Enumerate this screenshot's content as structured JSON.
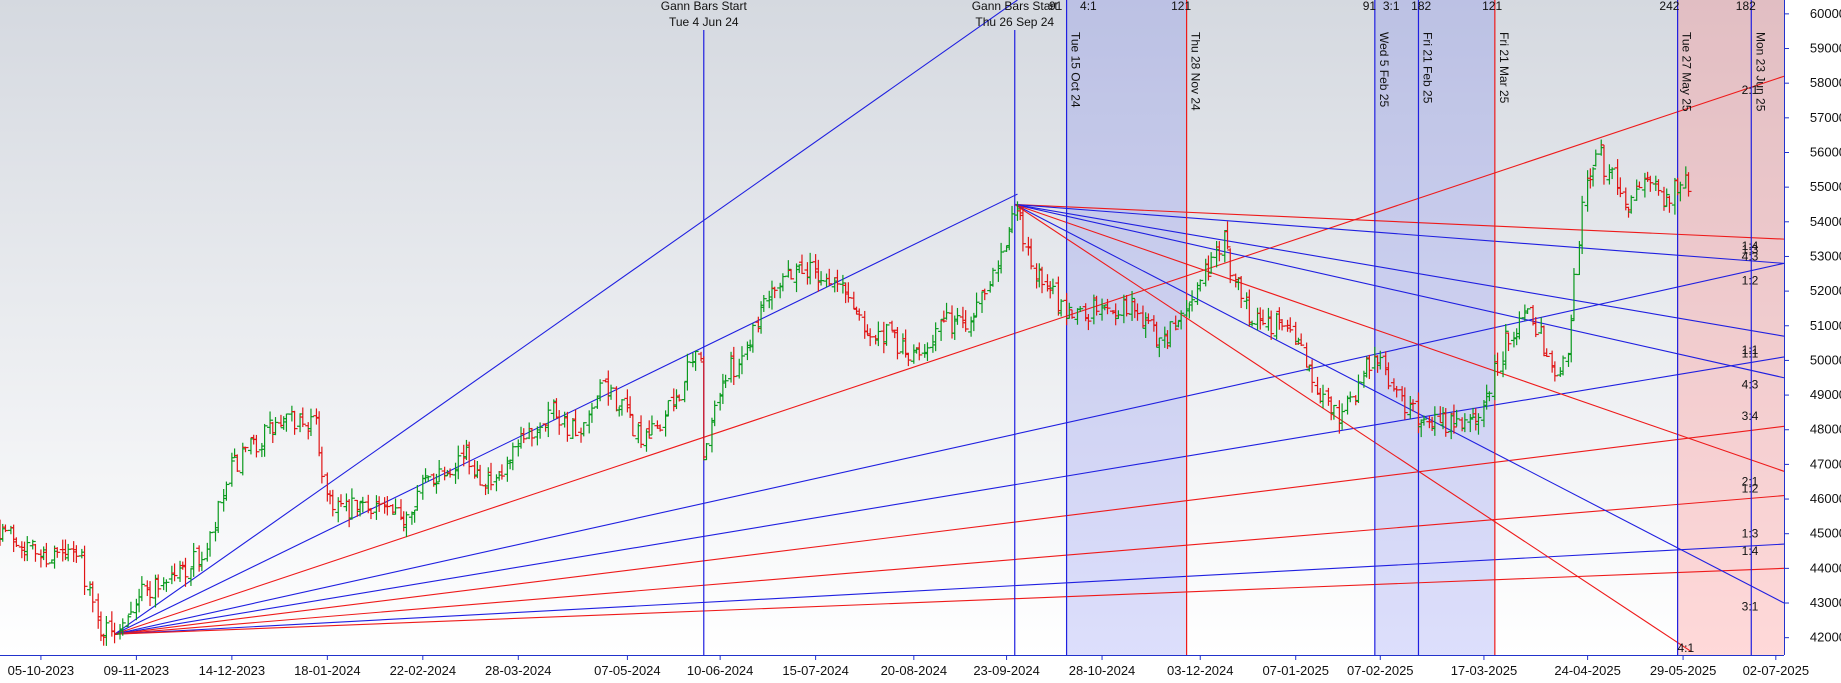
{
  "chart_data": {
    "type": "candlestick",
    "title": "",
    "ylim": [
      41500,
      60400
    ],
    "y_ticks": [
      "42000.00",
      "43000.00",
      "44000.00",
      "45000.00",
      "46000.00",
      "47000.00",
      "48000.00",
      "49000.00",
      "50000.00",
      "51000.00",
      "52000.00",
      "53000.00",
      "54000.00",
      "55000.00",
      "56000.00",
      "57000.00",
      "58000.00",
      "59000.00",
      "60000.00"
    ],
    "x_ticks": [
      "05-10-2023",
      "09-11-2023",
      "14-12-2023",
      "18-01-2024",
      "22-02-2024",
      "28-03-2024",
      "07-05-2024",
      "10-06-2024",
      "15-07-2024",
      "20-08-2024",
      "23-09-2024",
      "28-10-2024",
      "03-12-2024",
      "07-01-2025",
      "07-02-2025",
      "17-03-2025",
      "24-04-2025",
      "29-05-2025",
      "02-07-2025"
    ],
    "date_range": [
      "2023-09-20",
      "2025-07-05"
    ],
    "price_series": [
      {
        "date": "2023-09-20",
        "close": 45200
      },
      {
        "date": "2023-10-05",
        "close": 44400
      },
      {
        "date": "2023-10-20",
        "close": 44300
      },
      {
        "date": "2023-10-26",
        "close": 42400
      },
      {
        "date": "2023-10-31",
        "close": 42100
      },
      {
        "date": "2023-11-09",
        "close": 43200
      },
      {
        "date": "2023-11-25",
        "close": 43900
      },
      {
        "date": "2023-12-05",
        "close": 44400
      },
      {
        "date": "2023-12-14",
        "close": 46800
      },
      {
        "date": "2023-12-28",
        "close": 48000
      },
      {
        "date": "2024-01-08",
        "close": 48300
      },
      {
        "date": "2024-01-14",
        "close": 48100
      },
      {
        "date": "2024-01-18",
        "close": 46200
      },
      {
        "date": "2024-01-25",
        "close": 45600
      },
      {
        "date": "2024-02-05",
        "close": 45900
      },
      {
        "date": "2024-02-14",
        "close": 45300
      },
      {
        "date": "2024-02-22",
        "close": 46400
      },
      {
        "date": "2024-03-08",
        "close": 47300
      },
      {
        "date": "2024-03-20",
        "close": 46300
      },
      {
        "date": "2024-03-28",
        "close": 47400
      },
      {
        "date": "2024-04-10",
        "close": 48700
      },
      {
        "date": "2024-04-20",
        "close": 47700
      },
      {
        "date": "2024-04-29",
        "close": 49300
      },
      {
        "date": "2024-05-07",
        "close": 48400
      },
      {
        "date": "2024-05-14",
        "close": 47600
      },
      {
        "date": "2024-05-24",
        "close": 48700
      },
      {
        "date": "2024-06-03",
        "close": 50300
      },
      {
        "date": "2024-06-04",
        "close": 47000
      },
      {
        "date": "2024-06-10",
        "close": 49200
      },
      {
        "date": "2024-06-20",
        "close": 50400
      },
      {
        "date": "2024-06-28",
        "close": 52100
      },
      {
        "date": "2024-07-08",
        "close": 52700
      },
      {
        "date": "2024-07-15",
        "close": 52600
      },
      {
        "date": "2024-07-25",
        "close": 52100
      },
      {
        "date": "2024-08-06",
        "close": 50600
      },
      {
        "date": "2024-08-12",
        "close": 50700
      },
      {
        "date": "2024-08-20",
        "close": 50000
      },
      {
        "date": "2024-08-30",
        "close": 51000
      },
      {
        "date": "2024-09-10",
        "close": 51200
      },
      {
        "date": "2024-09-23",
        "close": 53500
      },
      {
        "date": "2024-09-27",
        "close": 54300
      },
      {
        "date": "2024-10-04",
        "close": 52500
      },
      {
        "date": "2024-10-15",
        "close": 51400
      },
      {
        "date": "2024-10-28",
        "close": 51500
      },
      {
        "date": "2024-11-08",
        "close": 51600
      },
      {
        "date": "2024-11-20",
        "close": 50500
      },
      {
        "date": "2024-11-28",
        "close": 51500
      },
      {
        "date": "2024-12-05",
        "close": 52500
      },
      {
        "date": "2024-12-12",
        "close": 53400
      },
      {
        "date": "2024-12-20",
        "close": 51500
      },
      {
        "date": "2025-01-07",
        "close": 50800
      },
      {
        "date": "2025-01-15",
        "close": 49200
      },
      {
        "date": "2025-01-23",
        "close": 48500
      },
      {
        "date": "2025-02-01",
        "close": 49500
      },
      {
        "date": "2025-02-05",
        "close": 50300
      },
      {
        "date": "2025-02-12",
        "close": 49100
      },
      {
        "date": "2025-02-21",
        "close": 48400
      },
      {
        "date": "2025-03-05",
        "close": 48200
      },
      {
        "date": "2025-03-12",
        "close": 48100
      },
      {
        "date": "2025-03-17",
        "close": 48700
      },
      {
        "date": "2025-03-24",
        "close": 50300
      },
      {
        "date": "2025-04-01",
        "close": 51500
      },
      {
        "date": "2025-04-07",
        "close": 50900
      },
      {
        "date": "2025-04-11",
        "close": 49600
      },
      {
        "date": "2025-04-17",
        "close": 50300
      },
      {
        "date": "2025-04-24",
        "close": 55400
      },
      {
        "date": "2025-04-29",
        "close": 55800
      },
      {
        "date": "2025-05-08",
        "close": 54600
      },
      {
        "date": "2025-05-15",
        "close": 55000
      },
      {
        "date": "2025-05-22",
        "close": 54800
      },
      {
        "date": "2025-06-02",
        "close": 55100
      }
    ],
    "gann_fans": [
      {
        "origin_date": "2023-11-01",
        "origin_price": 42100,
        "angles": [
          {
            "color": "blue",
            "to_date": "2024-09-27",
            "to_price": 60400
          },
          {
            "color": "blue",
            "to_date": "2024-09-27",
            "to_price": 54800
          },
          {
            "color": "red",
            "to_date": "2025-07-05",
            "to_price": 58200
          },
          {
            "color": "blue",
            "to_date": "2025-07-05",
            "to_price": 52800
          },
          {
            "color": "blue",
            "to_date": "2025-07-05",
            "to_price": 50100
          },
          {
            "color": "red",
            "to_date": "2025-07-05",
            "to_price": 48100
          },
          {
            "color": "red",
            "to_date": "2025-07-05",
            "to_price": 46100
          },
          {
            "color": "blue",
            "to_date": "2025-07-05",
            "to_price": 44700
          },
          {
            "color": "red",
            "to_date": "2025-07-05",
            "to_price": 44000
          }
        ]
      },
      {
        "origin_date": "2024-09-26",
        "origin_price": 54500,
        "angles": [
          {
            "color": "red",
            "to_date": "2025-07-05",
            "to_price": 53500
          },
          {
            "color": "blue",
            "to_date": "2025-07-05",
            "to_price": 52800
          },
          {
            "color": "blue",
            "to_date": "2025-07-05",
            "to_price": 50700
          },
          {
            "color": "blue",
            "to_date": "2025-07-05",
            "to_price": 49500
          },
          {
            "color": "red",
            "to_date": "2025-07-05",
            "to_price": 46800
          },
          {
            "color": "blue",
            "to_date": "2025-07-05",
            "to_price": 43000
          },
          {
            "color": "red",
            "to_date": "2025-06-01",
            "to_price": 41600
          }
        ]
      }
    ],
    "shaded_zones": [
      {
        "from": "2024-10-15",
        "to": "2024-11-28",
        "color": "blue"
      },
      {
        "from": "2025-02-05",
        "to": "2025-03-21",
        "color": "blue"
      },
      {
        "from": "2025-05-27",
        "to": "2025-07-05",
        "color": "red"
      }
    ],
    "vertical_markers": [
      {
        "date": "2024-06-04",
        "label": "Gann Bars Start",
        "sublabel": "Tue 4 Jun 24",
        "color": "blue",
        "style": "top"
      },
      {
        "date": "2024-09-26",
        "label": "Gann Bars Start",
        "sublabel": "Thu 26 Sep 24",
        "color": "blue",
        "style": "top"
      },
      {
        "date": "2024-10-15",
        "label": "Tue 15 Oct 24",
        "color": "blue",
        "style": "rotated"
      },
      {
        "date": "2024-11-28",
        "label": "Thu 28 Nov 24",
        "color": "red",
        "style": "rotated"
      },
      {
        "date": "2025-02-05",
        "label": "Wed 5 Feb 25",
        "color": "blue",
        "style": "rotated"
      },
      {
        "date": "2025-02-21",
        "label": "Fri 21 Feb 25",
        "color": "blue",
        "style": "rotated"
      },
      {
        "date": "2025-03-21",
        "label": "Fri 21 Mar 25",
        "color": "red",
        "style": "rotated"
      },
      {
        "date": "2025-05-27",
        "label": "Tue 27 May 25",
        "color": "blue",
        "style": "rotated"
      },
      {
        "date": "2025-06-23",
        "label": "Mon 23 Jun 25",
        "color": "blue",
        "style": "rotated"
      }
    ],
    "top_counts": [
      {
        "text": "91",
        "date": "2024-10-11"
      },
      {
        "text": "4:1",
        "date": "2024-10-23"
      },
      {
        "text": "121",
        "date": "2024-11-26"
      },
      {
        "text": "91",
        "date": "2025-02-03"
      },
      {
        "text": "3:1",
        "date": "2025-02-11"
      },
      {
        "text": "182",
        "date": "2025-02-22"
      },
      {
        "text": "121",
        "date": "2025-03-20"
      },
      {
        "text": "242",
        "date": "2025-05-24"
      },
      {
        "text": "182",
        "date": "2025-06-21"
      }
    ],
    "ratio_labels": [
      {
        "text": "2:1",
        "price": 57800
      },
      {
        "text": "1:4",
        "price": 53300
      },
      {
        "text": "1:3",
        "price": 53200
      },
      {
        "text": "4:3",
        "price": 53000
      },
      {
        "text": "1:2",
        "price": 52300
      },
      {
        "text": "1:1",
        "price": 50300
      },
      {
        "text": "1:1",
        "price": 50200
      },
      {
        "text": "4:3",
        "price": 49300
      },
      {
        "text": "3:4",
        "price": 48400
      },
      {
        "text": "2:1",
        "price": 46500
      },
      {
        "text": "1:2",
        "price": 46300
      },
      {
        "text": "1:3",
        "price": 45000
      },
      {
        "text": "1:4",
        "price": 44500
      },
      {
        "text": "3:1",
        "price": 42900
      }
    ],
    "bottom_ratio": {
      "text": "4:1",
      "date": "2025-05-30",
      "price": 41700
    }
  }
}
